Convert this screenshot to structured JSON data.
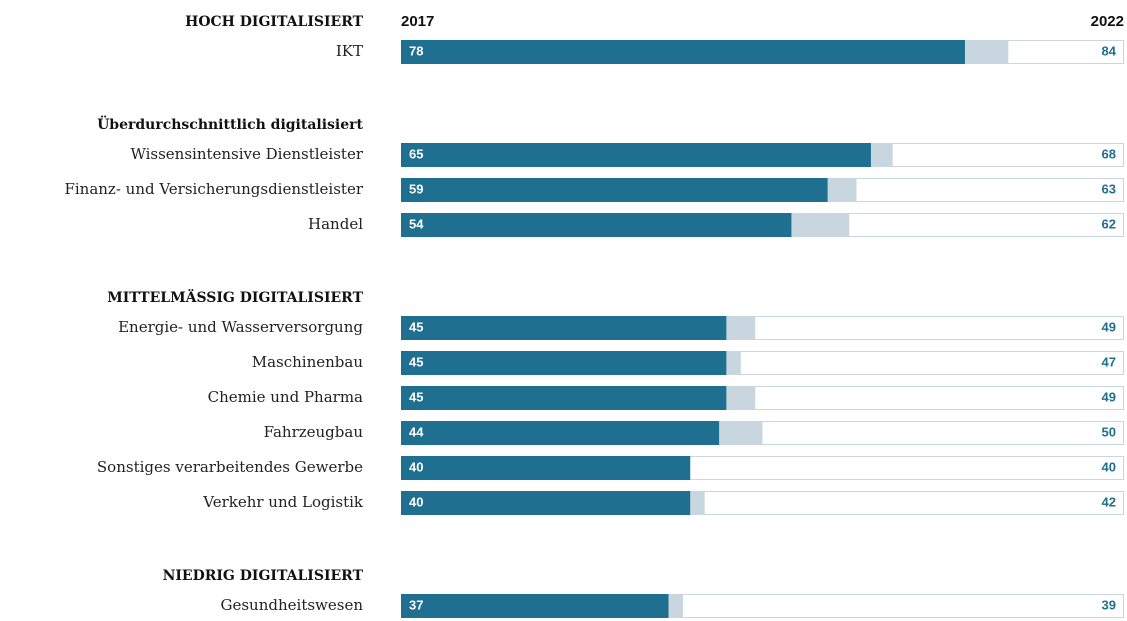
{
  "chart_data": {
    "type": "bar",
    "xlim": [
      0,
      100
    ],
    "series": [
      {
        "name": "2017",
        "color": "#1f6f91"
      },
      {
        "name": "2022",
        "color": "#c8d6e0"
      }
    ],
    "groups": [
      {
        "name": "HOCH DIGITALISIERT",
        "categories": [
          "IKT"
        ],
        "series": [
          {
            "values": [
              78
            ]
          },
          {
            "values": [
              84
            ]
          }
        ]
      },
      {
        "name": "Überdurchschnittlich digitalisiert",
        "categories": [
          "Wissensintensive Dienstleister",
          "Finanz- und Versicherungsdienstleister",
          "Handel"
        ],
        "series": [
          {
            "values": [
              65,
              59,
              54
            ]
          },
          {
            "values": [
              68,
              63,
              62
            ]
          }
        ]
      },
      {
        "name": "MITTELMÄSSIG DIGITALISIERT",
        "categories": [
          "Energie- und Wasserversorgung",
          "Maschinenbau",
          "Chemie und Pharma",
          "Fahrzeugbau",
          "Sonstiges verarbeitendes Gewerbe",
          "Verkehr und Logistik"
        ],
        "series": [
          {
            "values": [
              45,
              45,
              45,
              44,
              40,
              40
            ]
          },
          {
            "values": [
              49,
              47,
              49,
              50,
              40,
              42
            ]
          }
        ]
      },
      {
        "name": "NIEDRIG DIGITALISIERT",
        "categories": [
          "Gesundheitswesen"
        ],
        "series": [
          {
            "values": [
              37
            ]
          },
          {
            "values": [
              39
            ]
          }
        ]
      }
    ]
  }
}
